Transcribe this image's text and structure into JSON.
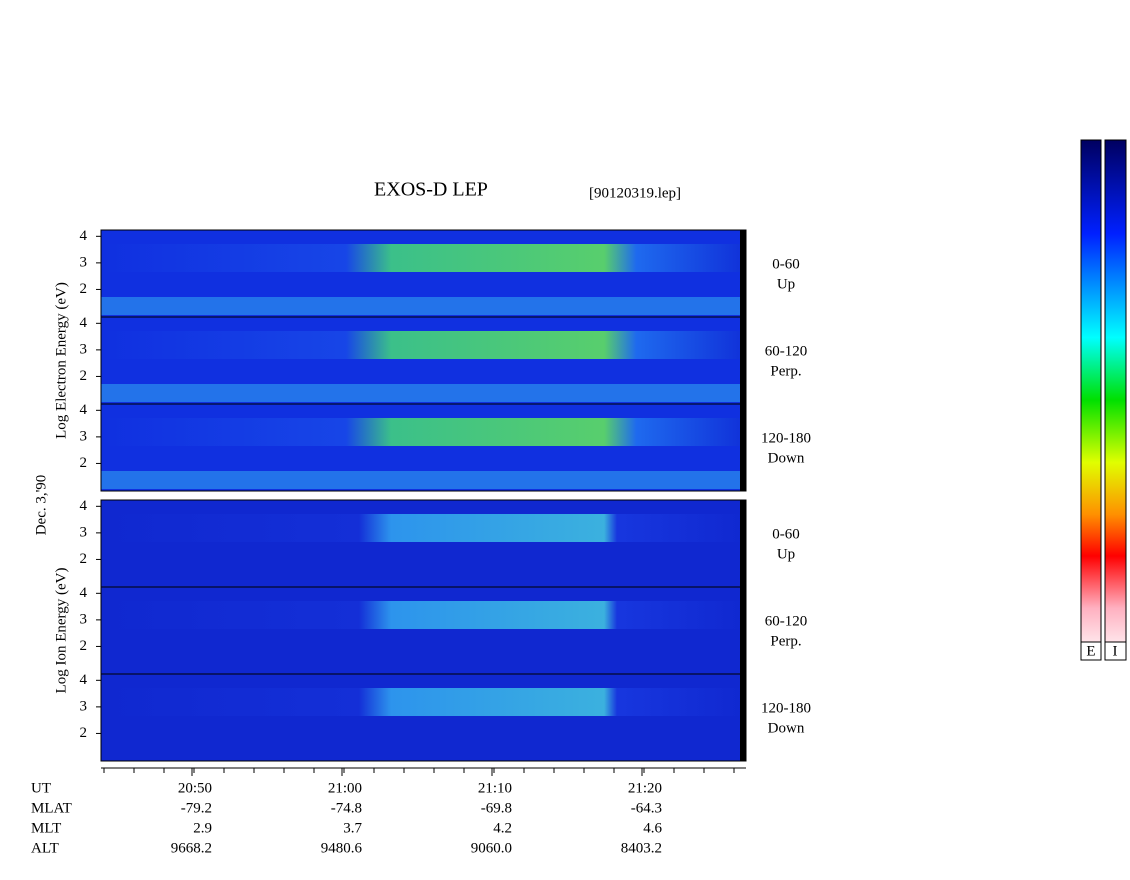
{
  "chart_data": {
    "type": "spectrogram",
    "title": "EXOS-D LEP",
    "subtitle": "[90120319.lep]",
    "date_label": "Dec. 3,'90",
    "groups": [
      {
        "axis_label": "Log  Electron  Energy (eV)",
        "panels": [
          {
            "label": [
              "0-60",
              "Up"
            ]
          },
          {
            "label": [
              "60-120",
              "Perp."
            ]
          },
          {
            "label": [
              "120-180",
              "Down"
            ]
          }
        ]
      },
      {
        "axis_label": "Log  Ion  Energy (eV)",
        "panels": [
          {
            "label": [
              "0-60",
              "Up"
            ]
          },
          {
            "label": [
              "60-120",
              "Perp."
            ]
          },
          {
            "label": [
              "120-180",
              "Down"
            ]
          }
        ]
      }
    ],
    "ylim": [
      1,
      4.2
    ],
    "yticks": [
      2,
      3,
      4
    ],
    "xticks": [
      "20:50",
      "21:00",
      "21:10",
      "21:20"
    ],
    "ephemeris": [
      {
        "name": "UT",
        "values": [
          "20:50",
          "21:00",
          "21:10",
          "21:20"
        ]
      },
      {
        "name": "MLAT",
        "values": [
          "-79.2",
          "-74.8",
          "-69.8",
          "-64.3"
        ]
      },
      {
        "name": "MLT",
        "values": [
          "2.9",
          "3.7",
          "4.2",
          "4.6"
        ]
      },
      {
        "name": "ALT",
        "values": [
          "9668.2",
          "9480.6",
          "9060.0",
          "8403.2"
        ]
      }
    ],
    "colorbar_labels": [
      "E",
      "I"
    ]
  }
}
